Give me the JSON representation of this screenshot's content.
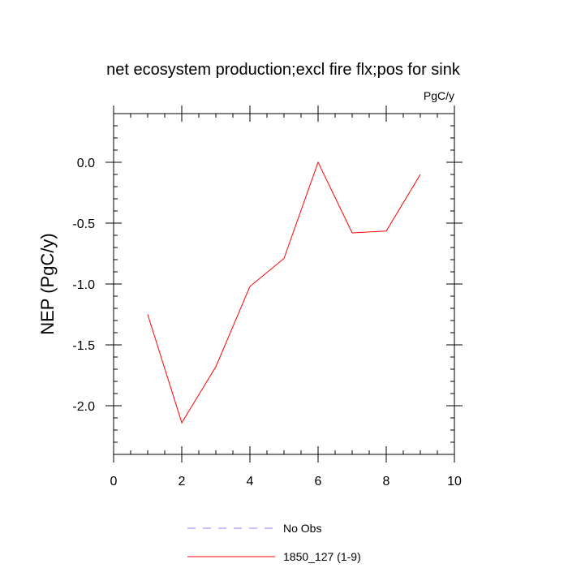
{
  "chart_data": {
    "type": "line",
    "title": "net ecosystem production;excl fire flx;pos for sink",
    "units_label": "PgC/y",
    "xlabel": "",
    "ylabel": "NEP  (PgC/y)",
    "xlim": [
      0,
      10
    ],
    "ylim": [
      -2.4,
      0.4
    ],
    "x_ticks": [
      0,
      2,
      4,
      6,
      8,
      10
    ],
    "x_tick_labels": [
      "0",
      "2",
      "4",
      "6",
      "8",
      "10"
    ],
    "y_ticks": [
      0.0,
      -0.5,
      -1.0,
      -1.5,
      -2.0
    ],
    "y_tick_labels": [
      "0.0",
      "-0.5",
      "-1.0",
      "-1.5",
      "-2.0"
    ],
    "grid": false,
    "legend_position": "bottom",
    "series": [
      {
        "name": "1850_127 (1-9)",
        "color": "#ff0000",
        "style": "solid",
        "x": [
          1,
          2,
          3,
          4,
          5,
          6,
          7,
          8,
          9
        ],
        "values": [
          -1.25,
          -2.14,
          -1.68,
          -1.02,
          -0.79,
          0.0,
          -0.58,
          -0.565,
          -0.1
        ]
      }
    ],
    "legend": [
      {
        "label": "No Obs",
        "color": "#8080ff",
        "style": "dashed"
      },
      {
        "label": "1850_127 (1-9)",
        "color": "#ff0000",
        "style": "solid"
      }
    ]
  }
}
